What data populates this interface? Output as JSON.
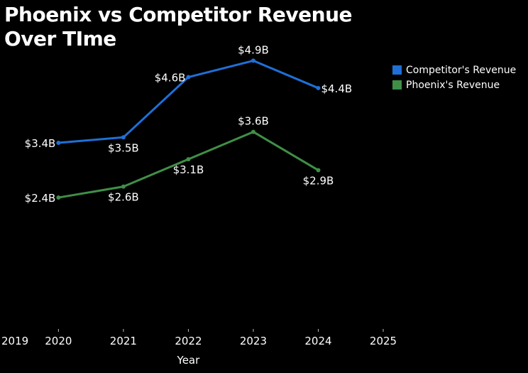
{
  "chart_data": {
    "type": "line",
    "title": "Phoenix vs Competitor Revenue Over TIme",
    "xlabel": "Year",
    "ylabel": "",
    "x": [
      2020,
      2021,
      2022,
      2023,
      2024
    ],
    "x_ticks": [
      "2019",
      "2020",
      "2021",
      "2022",
      "2023",
      "2024",
      "2025"
    ],
    "xlim": [
      2019.1,
      2025
    ],
    "ylim": [
      0,
      5.1
    ],
    "grid": false,
    "legend_position": "top-right",
    "series": [
      {
        "name": "Competitor's Revenue",
        "color": "#1f6fd6",
        "values": [
          3.4,
          3.5,
          4.6,
          4.9,
          4.4
        ],
        "labels": [
          "$3.4B",
          "$3.5B",
          "$4.6B",
          "$4.9B",
          "$4.4B"
        ],
        "label_positions": [
          "left",
          "below",
          "left",
          "above",
          "right"
        ]
      },
      {
        "name": "Phoenix's Revenue",
        "color": "#3f8f47",
        "values": [
          2.4,
          2.6,
          3.1,
          3.6,
          2.9
        ],
        "labels": [
          "$2.4B",
          "$2.6B",
          "$3.1B",
          "$3.6B",
          "$2.9B"
        ],
        "label_positions": [
          "left",
          "below",
          "below",
          "above",
          "below"
        ]
      }
    ]
  }
}
